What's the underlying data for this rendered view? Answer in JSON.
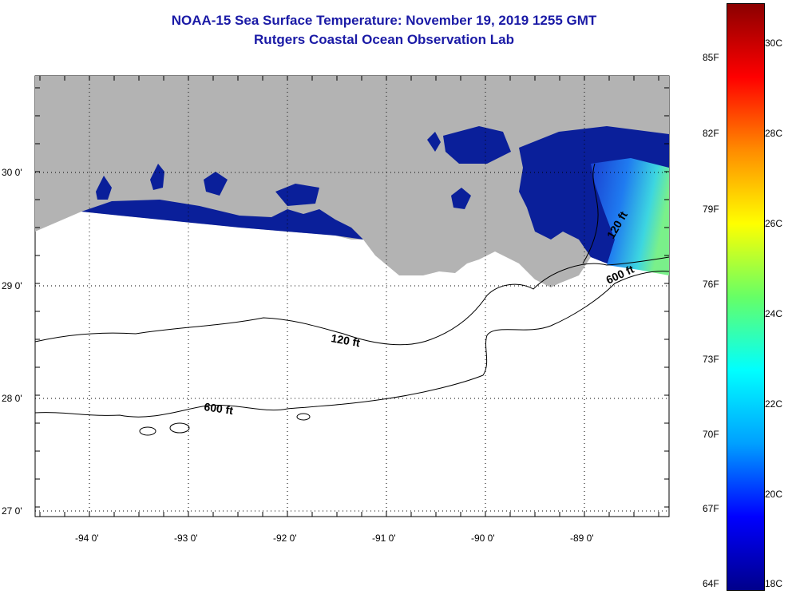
{
  "header": {
    "title": "NOAA-15 Sea Surface Temperature:  November 19, 2019 1255 GMT",
    "subtitle": "Rutgers Coastal Ocean Observation Lab"
  },
  "map": {
    "lat_labels": [
      "30 0'",
      "29 0'",
      "28 0'",
      "27 0'"
    ],
    "lon_labels": [
      "-94 0'",
      "-93 0'",
      "-92 0'",
      "-91 0'",
      "-90 0'",
      "-89 0'"
    ],
    "contour_labels": {
      "c120_west": "120 ft",
      "c600_west": "600 ft",
      "c120_east": "120 ft",
      "c600_east": "600 ft"
    },
    "colors": {
      "land": "#b3b3b3",
      "cold_water": "#0a1f9a",
      "grid": "#000000"
    }
  },
  "colorbar": {
    "fahrenheit_labels": [
      "85F",
      "82F",
      "79F",
      "76F",
      "73F",
      "70F",
      "67F",
      "64F"
    ],
    "celsius_labels": [
      "30C",
      "28C",
      "26C",
      "24C",
      "22C",
      "20C",
      "18C"
    ],
    "stops": [
      "#8b0000",
      "#ff0000",
      "#ff8c00",
      "#ffff00",
      "#66ff66",
      "#00ffff",
      "#00a0ff",
      "#0000ff",
      "#00008b"
    ]
  }
}
